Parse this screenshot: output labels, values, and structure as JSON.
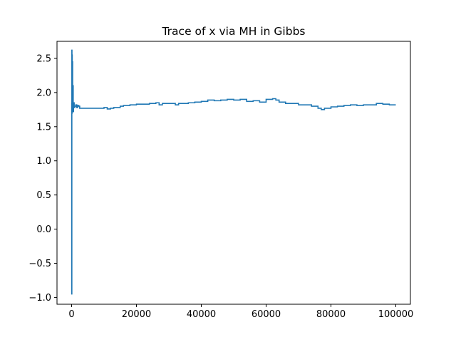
{
  "chart_data": {
    "type": "line",
    "title": "Trace of x via MH in Gibbs",
    "xlabel": "",
    "ylabel": "",
    "xlim": [
      -4500,
      104500
    ],
    "ylim": [
      -1.1,
      2.75
    ],
    "x_ticks": [
      0,
      20000,
      40000,
      60000,
      80000,
      100000
    ],
    "x_tick_labels": [
      "0",
      "20000",
      "40000",
      "60000",
      "80000",
      "100000"
    ],
    "y_ticks": [
      -1.0,
      -0.5,
      0.0,
      0.5,
      1.0,
      1.5,
      2.0,
      2.5
    ],
    "y_tick_labels": [
      "−1.0",
      "−0.5",
      "0.0",
      "0.5",
      "1.0",
      "1.5",
      "2.0",
      "2.5"
    ],
    "grid": false,
    "series": [
      {
        "color": "#1f77b4",
        "x": [
          0,
          40,
          80,
          120,
          160,
          200,
          260,
          320,
          400,
          500,
          600,
          800,
          1000,
          1300,
          1600,
          1900,
          2200,
          2500,
          3000,
          5000,
          7000,
          9000,
          10000,
          11000,
          12000,
          13000,
          14000,
          15000,
          16000,
          18000,
          20000,
          22000,
          24000,
          26000,
          27000,
          28000,
          30000,
          32000,
          33000,
          34000,
          36000,
          38000,
          40000,
          42000,
          44000,
          46000,
          48000,
          50000,
          52000,
          54000,
          56000,
          58000,
          60000,
          62000,
          63000,
          64000,
          66000,
          68000,
          70000,
          72000,
          74000,
          75000,
          76000,
          77000,
          78000,
          80000,
          82000,
          84000,
          86000,
          88000,
          90000,
          92000,
          94000,
          96000,
          98000,
          100000
        ],
        "y": [
          1.85,
          -0.95,
          2.62,
          1.7,
          2.55,
          1.75,
          2.45,
          1.8,
          2.1,
          1.72,
          1.85,
          1.78,
          1.8,
          1.82,
          1.78,
          1.81,
          1.8,
          1.77,
          1.77,
          1.77,
          1.77,
          1.77,
          1.78,
          1.76,
          1.77,
          1.78,
          1.78,
          1.8,
          1.81,
          1.82,
          1.83,
          1.83,
          1.84,
          1.85,
          1.82,
          1.84,
          1.84,
          1.82,
          1.84,
          1.84,
          1.85,
          1.86,
          1.87,
          1.89,
          1.88,
          1.89,
          1.9,
          1.89,
          1.9,
          1.87,
          1.88,
          1.86,
          1.9,
          1.91,
          1.89,
          1.86,
          1.84,
          1.84,
          1.82,
          1.82,
          1.8,
          1.8,
          1.77,
          1.75,
          1.77,
          1.79,
          1.8,
          1.81,
          1.82,
          1.81,
          1.82,
          1.82,
          1.84,
          1.83,
          1.82,
          1.82
        ]
      }
    ]
  }
}
